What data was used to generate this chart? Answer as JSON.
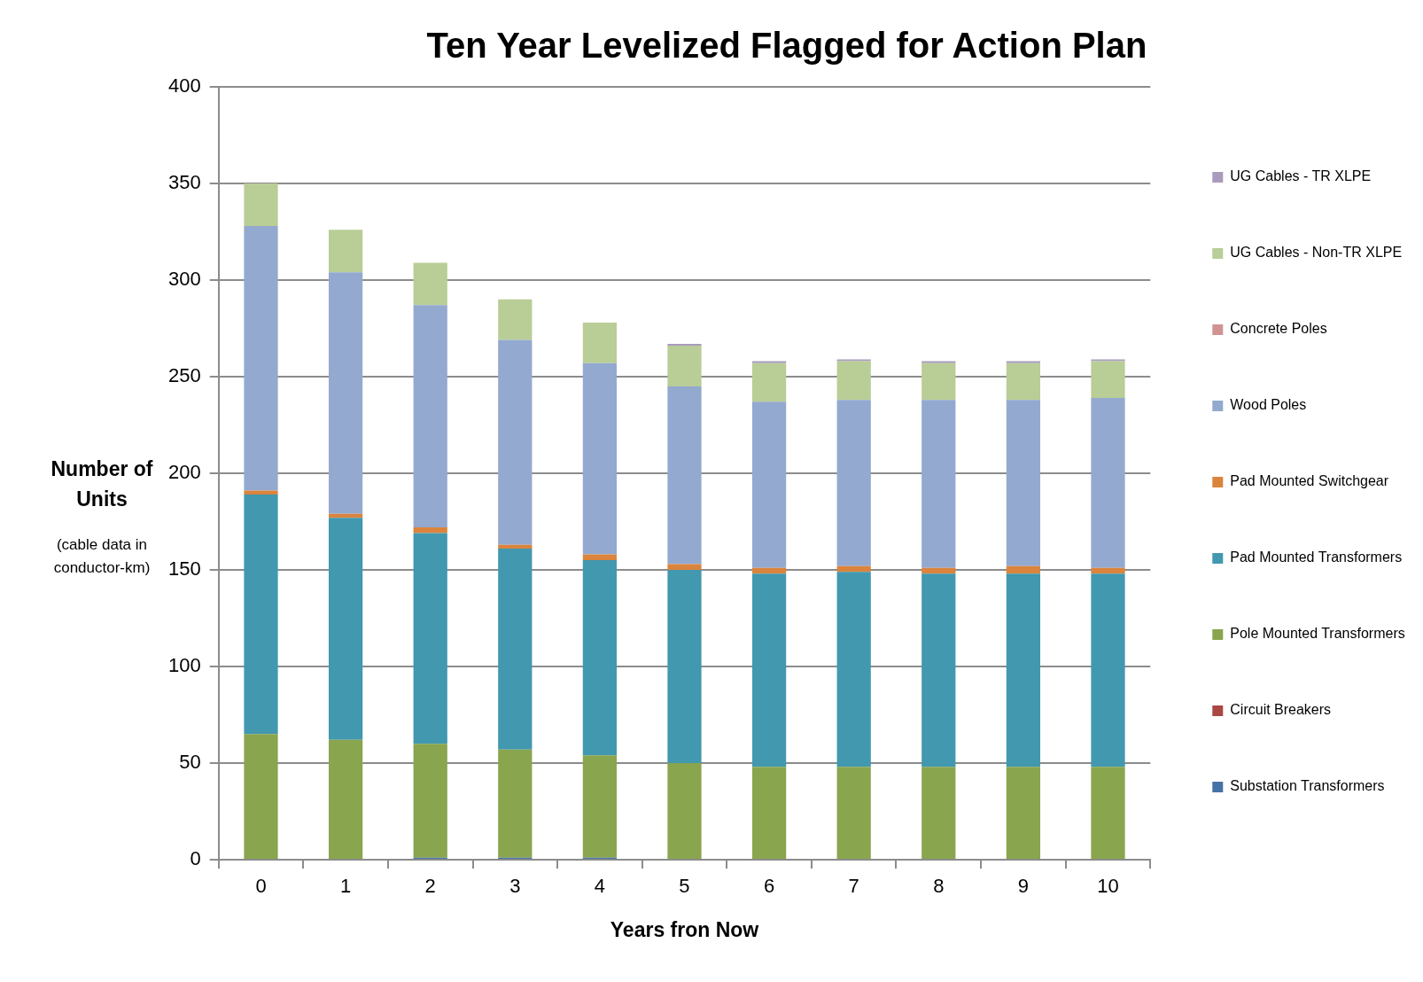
{
  "chart_data": {
    "type": "bar",
    "title": "Ten Year Levelized Flagged for Action Plan",
    "xlabel": "Years fron Now",
    "ylabel": "Number of Units",
    "annotations": [
      "(cable data in conductor-km)"
    ],
    "categories": [
      "0",
      "1",
      "2",
      "3",
      "4",
      "5",
      "6",
      "7",
      "8",
      "9",
      "10"
    ],
    "stacked": true,
    "ylim": [
      0,
      400
    ],
    "yticks": [
      0,
      50,
      100,
      150,
      200,
      250,
      300,
      350,
      400
    ],
    "grid": "y",
    "legend": "right",
    "series": [
      {
        "name": "Substation Transformers",
        "color": "#4572a7",
        "values": [
          0,
          0,
          1,
          1,
          1,
          0,
          0,
          0,
          0,
          0,
          0
        ]
      },
      {
        "name": "Circuit Breakers",
        "color": "#aa4643",
        "values": [
          0,
          0,
          0,
          0,
          0,
          0,
          0,
          0,
          0,
          0,
          0
        ]
      },
      {
        "name": "Pole Mounted Transformers",
        "color": "#89a54e",
        "values": [
          65,
          62,
          59,
          56,
          53,
          50,
          48,
          48,
          48,
          48,
          48
        ]
      },
      {
        "name": "Pad Mounted Transformers",
        "color": "#4198af",
        "values": [
          124,
          115,
          109,
          104,
          101,
          100,
          100,
          101,
          100,
          100,
          100
        ]
      },
      {
        "name": "Pad Mounted Switchgear",
        "color": "#db843d",
        "values": [
          2,
          2,
          3,
          2,
          3,
          3,
          3,
          3,
          3,
          4,
          3
        ]
      },
      {
        "name": "Wood Poles",
        "color": "#93a9cf",
        "values": [
          137,
          125,
          115,
          106,
          99,
          92,
          86,
          86,
          87,
          86,
          88
        ]
      },
      {
        "name": "Concrete Poles",
        "color": "#d19392",
        "values": [
          0,
          0,
          0,
          0,
          0,
          0,
          0,
          0,
          0,
          0,
          0
        ]
      },
      {
        "name": "UG Cables - Non-TR XLPE",
        "color": "#b9cd96",
        "values": [
          22,
          22,
          22,
          21,
          21,
          21,
          20,
          20,
          19,
          19,
          19
        ]
      },
      {
        "name": "UG Cables - TR XLPE",
        "color": "#a99bbd",
        "values": [
          0,
          0,
          0,
          0,
          0,
          1,
          1,
          1,
          1,
          1,
          1
        ]
      }
    ]
  }
}
